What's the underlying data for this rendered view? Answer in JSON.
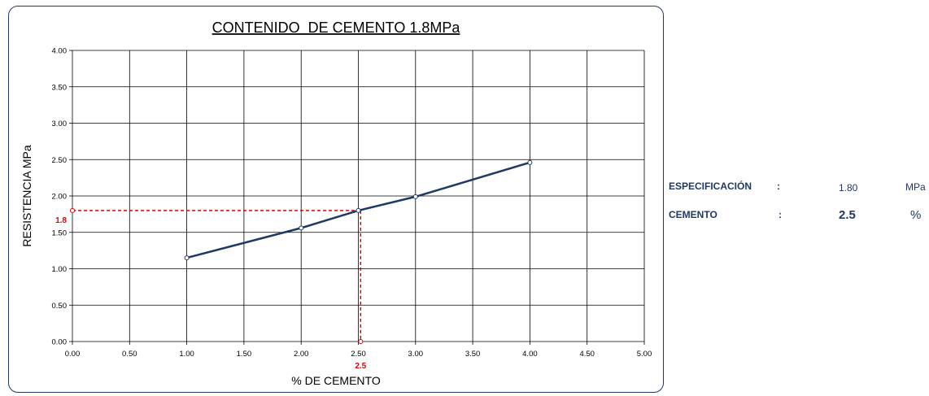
{
  "chart_data": {
    "type": "line",
    "title": "CONTENIDO  DE CEMENTO 1.8MPa",
    "xlabel": "% DE CEMENTO",
    "ylabel": "RESISTENCIA MPa",
    "xlim": [
      0,
      5
    ],
    "ylim": [
      0,
      4
    ],
    "x_ticks": [
      "0.00",
      "0.50",
      "1.00",
      "1.50",
      "2.00",
      "2.50",
      "3.00",
      "3.50",
      "4.00",
      "4.50",
      "5.00"
    ],
    "y_ticks": [
      "0.00",
      "0.50",
      "1.00",
      "1.50",
      "2.00",
      "2.50",
      "3.00",
      "3.50",
      "4.00"
    ],
    "grid": true,
    "series": [
      {
        "x": [
          1.0,
          2.0,
          2.5,
          3.0,
          4.0
        ],
        "y": [
          1.15,
          1.56,
          1.8,
          1.99,
          2.46
        ],
        "color": "#1f3864"
      }
    ],
    "marker": {
      "x": 2.52,
      "y": 1.8,
      "color": "#e00000",
      "x_label": "2.5",
      "y_label": "1.8"
    }
  },
  "info": {
    "spec_label": "ESPECIFICACIÓN",
    "spec_colon": ":",
    "spec_value": "1.80",
    "spec_unit": "MPa",
    "cement_label": "CEMENTO",
    "cement_colon": ":",
    "cement_value": "2.5",
    "cement_unit": "%"
  }
}
